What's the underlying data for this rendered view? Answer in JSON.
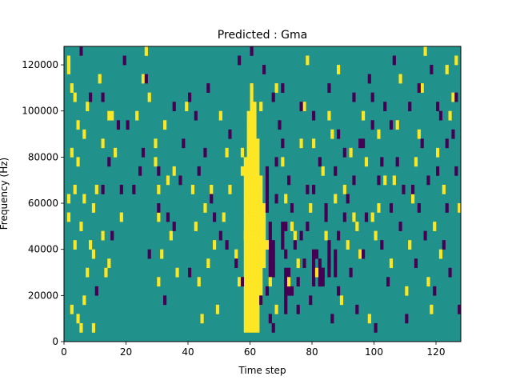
{
  "chart_data": {
    "type": "heatmap",
    "title": "Predicted : Gma",
    "xlabel": "Time step",
    "ylabel": "Frequency (Hz)",
    "xlim": [
      0,
      128
    ],
    "ylim": [
      0,
      128000
    ],
    "xticks": [
      0,
      20,
      40,
      60,
      80,
      100,
      120
    ],
    "yticks": [
      0,
      20000,
      40000,
      60000,
      80000,
      100000,
      120000
    ],
    "xtick_labels": [
      "0",
      "20",
      "40",
      "60",
      "80",
      "100",
      "120"
    ],
    "ytick_labels": [
      "0",
      "20000",
      "40000",
      "60000",
      "80000",
      "100000",
      "120000"
    ],
    "rows": 32,
    "cols": 128,
    "colormap": "viridis",
    "background_value": 0.5,
    "colors": {
      "low": "#440154",
      "mid": "#21918c",
      "high": "#fde725"
    },
    "legend": "none",
    "grid": false,
    "high_cells": [
      [
        1,
        30
      ],
      [
        1,
        29
      ],
      [
        5,
        31
      ],
      [
        2,
        27
      ],
      [
        3,
        26
      ],
      [
        7,
        25
      ],
      [
        14,
        24
      ],
      [
        4,
        23
      ],
      [
        6,
        22
      ],
      [
        12,
        21
      ],
      [
        2,
        20
      ],
      [
        4,
        19
      ],
      [
        10,
        16
      ],
      [
        3,
        16
      ],
      [
        1,
        15
      ],
      [
        6,
        15
      ],
      [
        9,
        14
      ],
      [
        1,
        13
      ],
      [
        5,
        12
      ],
      [
        12,
        11
      ],
      [
        3,
        10
      ],
      [
        8,
        10
      ],
      [
        9,
        9
      ],
      [
        14,
        8
      ],
      [
        7,
        7
      ],
      [
        13,
        7
      ],
      [
        2,
        3
      ],
      [
        6,
        4
      ],
      [
        4,
        2
      ],
      [
        9,
        1
      ],
      [
        5,
        1
      ],
      [
        11,
        28
      ],
      [
        15,
        24
      ],
      [
        16,
        20
      ],
      [
        18,
        13
      ],
      [
        23,
        24
      ],
      [
        25,
        28
      ],
      [
        26,
        31
      ],
      [
        27,
        26
      ],
      [
        29,
        21
      ],
      [
        29,
        19
      ],
      [
        30,
        16
      ],
      [
        30,
        13
      ],
      [
        31,
        9
      ],
      [
        30,
        6
      ],
      [
        32,
        23
      ],
      [
        33,
        17
      ],
      [
        34,
        11
      ],
      [
        35,
        18
      ],
      [
        36,
        7
      ],
      [
        39,
        25
      ],
      [
        41,
        16
      ],
      [
        42,
        12
      ],
      [
        43,
        6
      ],
      [
        44,
        2
      ],
      [
        46,
        8
      ],
      [
        47,
        16
      ],
      [
        48,
        10
      ],
      [
        49,
        3
      ],
      [
        51,
        13
      ],
      [
        52,
        20
      ],
      [
        55,
        9
      ],
      [
        57,
        18
      ],
      [
        58,
        11
      ],
      [
        59,
        4
      ],
      [
        61,
        22
      ],
      [
        62,
        17
      ],
      [
        63,
        13
      ],
      [
        65,
        10
      ],
      [
        66,
        6
      ],
      [
        68,
        27
      ],
      [
        70,
        19
      ],
      [
        71,
        15
      ],
      [
        73,
        12
      ],
      [
        75,
        8
      ],
      [
        76,
        21
      ],
      [
        77,
        25
      ],
      [
        78,
        30
      ],
      [
        79,
        14
      ],
      [
        81,
        7
      ],
      [
        83,
        18
      ],
      [
        84,
        11
      ],
      [
        86,
        22
      ],
      [
        88,
        29
      ],
      [
        89,
        4
      ],
      [
        90,
        16
      ],
      [
        91,
        10
      ],
      [
        92,
        20
      ],
      [
        93,
        13
      ],
      [
        95,
        9
      ],
      [
        96,
        24
      ],
      [
        97,
        19
      ],
      [
        98,
        2
      ],
      [
        100,
        11
      ],
      [
        101,
        14
      ],
      [
        103,
        17
      ],
      [
        105,
        8
      ],
      [
        107,
        23
      ],
      [
        108,
        28
      ],
      [
        110,
        5
      ],
      [
        111,
        10
      ],
      [
        112,
        15
      ],
      [
        113,
        19
      ],
      [
        114,
        22
      ],
      [
        115,
        27
      ],
      [
        116,
        31
      ],
      [
        117,
        6
      ],
      [
        118,
        3
      ],
      [
        119,
        12
      ],
      [
        120,
        20
      ],
      [
        121,
        9
      ],
      [
        122,
        16
      ],
      [
        123,
        29
      ],
      [
        124,
        24
      ],
      [
        125,
        26
      ],
      [
        126,
        30
      ],
      [
        127,
        14
      ],
      [
        101,
        22
      ],
      [
        106,
        17
      ],
      [
        99,
        13
      ],
      [
        94,
        12
      ],
      [
        87,
        15
      ],
      [
        85,
        24
      ],
      [
        80,
        21
      ],
      [
        74,
        11
      ],
      [
        72,
        6
      ],
      [
        68,
        3
      ],
      [
        64,
        8
      ],
      [
        63,
        25
      ],
      [
        57,
        20
      ],
      [
        56,
        6
      ],
      [
        53,
        16
      ],
      [
        50,
        24
      ],
      [
        45,
        14
      ]
    ],
    "high_columns": [
      {
        "col": 58,
        "from_row": 1,
        "to_row": 19
      },
      {
        "col": 59,
        "from_row": 1,
        "to_row": 24
      },
      {
        "col": 60,
        "from_row": 1,
        "to_row": 27
      },
      {
        "col": 61,
        "from_row": 1,
        "to_row": 25
      },
      {
        "col": 62,
        "from_row": 1,
        "to_row": 21
      },
      {
        "col": 63,
        "from_row": 4,
        "to_row": 17
      },
      {
        "col": 64,
        "from_row": 9,
        "to_row": 14
      }
    ],
    "low_cells": [
      [
        5,
        31
      ],
      [
        8,
        26
      ],
      [
        12,
        26
      ],
      [
        19,
        30
      ],
      [
        14,
        19
      ],
      [
        18,
        16
      ],
      [
        17,
        23
      ],
      [
        22,
        16
      ],
      [
        26,
        28
      ],
      [
        25,
        20
      ],
      [
        30,
        18
      ],
      [
        33,
        13
      ],
      [
        35,
        12
      ],
      [
        37,
        17
      ],
      [
        40,
        26
      ],
      [
        42,
        24
      ],
      [
        45,
        20
      ],
      [
        47,
        15
      ],
      [
        50,
        11
      ],
      [
        52,
        10
      ],
      [
        55,
        8
      ],
      [
        57,
        6
      ],
      [
        63,
        4
      ],
      [
        65,
        5
      ],
      [
        66,
        2
      ],
      [
        67,
        1
      ],
      [
        68,
        15
      ],
      [
        68,
        19
      ],
      [
        70,
        21
      ],
      [
        70,
        27
      ],
      [
        71,
        9
      ],
      [
        72,
        17
      ],
      [
        73,
        14
      ],
      [
        73,
        5
      ],
      [
        74,
        10
      ],
      [
        75,
        6
      ],
      [
        75,
        3
      ],
      [
        76,
        11
      ],
      [
        77,
        8
      ],
      [
        78,
        12
      ],
      [
        79,
        4
      ],
      [
        80,
        16
      ],
      [
        81,
        9
      ],
      [
        82,
        6
      ],
      [
        83,
        7
      ],
      [
        84,
        13
      ],
      [
        84,
        14
      ],
      [
        85,
        8
      ],
      [
        86,
        2
      ],
      [
        87,
        18
      ],
      [
        88,
        5
      ],
      [
        88,
        11
      ],
      [
        90,
        20
      ],
      [
        91,
        15
      ],
      [
        92,
        7
      ],
      [
        93,
        26
      ],
      [
        94,
        3
      ],
      [
        95,
        21
      ],
      [
        96,
        9
      ],
      [
        97,
        13
      ],
      [
        98,
        28
      ],
      [
        99,
        23
      ],
      [
        100,
        1
      ],
      [
        101,
        17
      ],
      [
        102,
        10
      ],
      [
        103,
        25
      ],
      [
        104,
        6
      ],
      [
        105,
        14
      ],
      [
        106,
        30
      ],
      [
        107,
        19
      ],
      [
        108,
        12
      ],
      [
        110,
        2
      ],
      [
        112,
        16
      ],
      [
        113,
        8
      ],
      [
        114,
        27
      ],
      [
        115,
        21
      ],
      [
        116,
        11
      ],
      [
        118,
        29
      ],
      [
        119,
        5
      ],
      [
        120,
        18
      ],
      [
        121,
        24
      ],
      [
        122,
        10
      ],
      [
        123,
        14
      ],
      [
        124,
        7
      ],
      [
        125,
        22
      ],
      [
        126,
        26
      ],
      [
        127,
        3
      ],
      [
        10,
        5
      ],
      [
        12,
        16
      ],
      [
        15,
        11
      ],
      [
        20,
        23
      ],
      [
        24,
        18
      ],
      [
        27,
        9
      ],
      [
        30,
        14
      ],
      [
        32,
        4
      ],
      [
        35,
        25
      ],
      [
        38,
        21
      ],
      [
        40,
        7
      ],
      [
        43,
        18
      ],
      [
        46,
        27
      ],
      [
        48,
        13
      ],
      [
        53,
        22
      ],
      [
        56,
        30
      ],
      [
        60,
        31
      ],
      [
        64,
        29
      ],
      [
        67,
        26
      ],
      [
        69,
        23
      ],
      [
        71,
        12
      ],
      [
        76,
        25
      ],
      [
        78,
        16
      ],
      [
        80,
        24
      ],
      [
        82,
        19
      ],
      [
        85,
        27
      ],
      [
        88,
        22
      ],
      [
        90,
        13
      ],
      [
        93,
        17
      ],
      [
        96,
        21
      ],
      [
        99,
        26
      ],
      [
        102,
        19
      ],
      [
        105,
        23
      ],
      [
        109,
        16
      ],
      [
        111,
        25
      ],
      [
        114,
        14
      ],
      [
        117,
        17
      ],
      [
        120,
        25
      ],
      [
        123,
        21
      ],
      [
        126,
        18
      ]
    ],
    "low_columns": [
      {
        "col": 65,
        "from_row": 14,
        "to_row": 18
      },
      {
        "col": 66,
        "from_row": 7,
        "to_row": 12
      },
      {
        "col": 67,
        "from_row": 7,
        "to_row": 10
      },
      {
        "col": 70,
        "from_row": 10,
        "to_row": 12
      },
      {
        "col": 71,
        "from_row": 3,
        "to_row": 7
      },
      {
        "col": 72,
        "from_row": 5,
        "to_row": 7
      },
      {
        "col": 80,
        "from_row": 6,
        "to_row": 9
      },
      {
        "col": 82,
        "from_row": 6,
        "to_row": 8
      },
      {
        "col": 83,
        "from_row": 6,
        "to_row": 7
      },
      {
        "col": 85,
        "from_row": 7,
        "to_row": 10
      },
      {
        "col": 87,
        "from_row": 7,
        "to_row": 9
      }
    ]
  }
}
